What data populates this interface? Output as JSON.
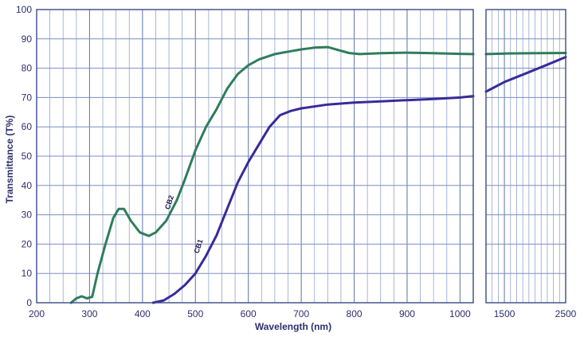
{
  "chart_data": {
    "type": "line",
    "xlabel": "Wavelength (nm)",
    "ylabel": "Transmittance (T%)",
    "ylim": [
      0,
      100
    ],
    "yticks": [
      0,
      10,
      20,
      30,
      40,
      50,
      60,
      70,
      80,
      90,
      100
    ],
    "grid": true,
    "panels": [
      {
        "xlim": [
          200,
          1025
        ],
        "xticks": [
          200,
          300,
          400,
          500,
          600,
          700,
          800,
          900,
          1000
        ],
        "minor_step": 25
      },
      {
        "xlim": [
          1200,
          2500
        ],
        "xticks": [
          1500,
          2500
        ],
        "minor_step": 100
      }
    ],
    "series": [
      {
        "name": "CB2",
        "color": "#2f7d5a",
        "label_at": [
          455,
          34
        ],
        "values": [
          [
            265,
            0
          ],
          [
            275,
            1.5
          ],
          [
            285,
            2.2
          ],
          [
            295,
            1.5
          ],
          [
            305,
            2
          ],
          [
            315,
            10
          ],
          [
            330,
            20
          ],
          [
            345,
            29
          ],
          [
            355,
            32
          ],
          [
            365,
            32
          ],
          [
            378,
            28
          ],
          [
            395,
            24
          ],
          [
            412,
            22.8
          ],
          [
            425,
            24
          ],
          [
            445,
            28
          ],
          [
            465,
            35
          ],
          [
            480,
            42
          ],
          [
            500,
            52
          ],
          [
            520,
            60
          ],
          [
            540,
            66
          ],
          [
            560,
            73
          ],
          [
            580,
            78
          ],
          [
            600,
            81
          ],
          [
            620,
            83
          ],
          [
            650,
            84.8
          ],
          [
            680,
            85.8
          ],
          [
            700,
            86.4
          ],
          [
            725,
            87
          ],
          [
            750,
            87.2
          ],
          [
            770,
            86.2
          ],
          [
            790,
            85.2
          ],
          [
            810,
            84.8
          ],
          [
            850,
            85.1
          ],
          [
            900,
            85.3
          ],
          [
            950,
            85.1
          ],
          [
            1000,
            84.9
          ],
          [
            1025,
            84.8
          ],
          [
            1200,
            84.8
          ],
          [
            1500,
            85
          ],
          [
            2000,
            85.1
          ],
          [
            2500,
            85.2
          ]
        ]
      },
      {
        "name": "CB1",
        "color": "#3a2a9a",
        "label_at": [
          510,
          19
        ],
        "values": [
          [
            420,
            0
          ],
          [
            440,
            0.8
          ],
          [
            460,
            3
          ],
          [
            480,
            6
          ],
          [
            500,
            10
          ],
          [
            520,
            16
          ],
          [
            540,
            23
          ],
          [
            560,
            32
          ],
          [
            580,
            41
          ],
          [
            600,
            48
          ],
          [
            620,
            54
          ],
          [
            640,
            60
          ],
          [
            660,
            64
          ],
          [
            680,
            65.4
          ],
          [
            700,
            66.3
          ],
          [
            750,
            67.6
          ],
          [
            800,
            68.3
          ],
          [
            850,
            68.7
          ],
          [
            900,
            69.1
          ],
          [
            950,
            69.5
          ],
          [
            1000,
            70
          ],
          [
            1025,
            70.5
          ],
          [
            1200,
            72
          ],
          [
            1500,
            75.3
          ],
          [
            1800,
            77.8
          ],
          [
            2200,
            81.2
          ],
          [
            2500,
            83.8
          ]
        ]
      }
    ]
  }
}
